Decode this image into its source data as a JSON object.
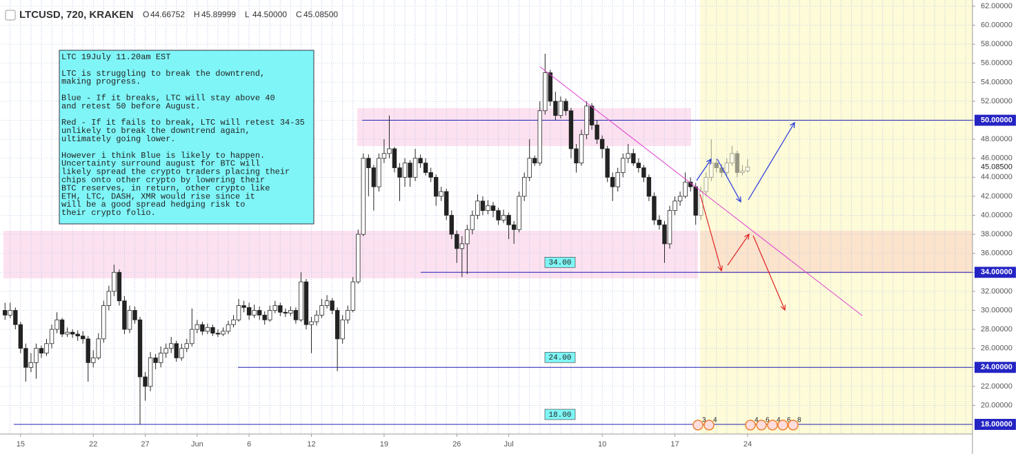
{
  "chart_data": {
    "type": "candlestick",
    "header": {
      "symbol": "LTCUSD, 720, KRAKEN",
      "ohlc": [
        {
          "key": "O",
          "value": "44.66752"
        },
        {
          "key": "H",
          "value": "45.89999"
        },
        {
          "key": "L",
          "value": "44.50000"
        },
        {
          "key": "C",
          "value": "45.08500"
        }
      ]
    },
    "open": [
      30,
      29.5,
      30,
      28.5,
      26,
      24,
      24.5,
      26,
      25.5,
      26.5,
      28,
      29,
      27.5,
      27.7,
      27.5,
      27.3,
      27,
      24.5,
      25,
      27,
      30.5,
      32,
      34,
      31,
      28,
      30,
      29,
      23,
      22,
      25,
      24.5,
      25.5,
      26,
      26.5,
      25,
      26,
      26.5,
      28,
      28.5,
      27.8,
      28.2,
      27.6,
      27.5,
      27.8,
      28.5,
      29,
      30.5,
      30.3,
      29.5,
      30,
      29.5,
      29,
      30,
      30.5,
      29.8,
      29.7,
      30,
      29,
      33,
      28.5,
      28.8,
      29.5,
      30.5,
      31,
      30,
      27,
      29,
      30,
      33,
      38,
      46,
      45,
      43,
      46,
      46.5,
      47,
      45,
      44,
      45.5,
      44,
      46,
      45.5,
      44.5,
      44,
      42,
      42.5,
      40,
      38,
      36.5,
      37,
      38.5,
      40,
      41.5,
      40.5,
      41,
      40.5,
      39.5,
      40,
      39,
      38.5,
      42,
      44,
      46,
      45.5,
      51,
      55,
      52,
      50.5,
      52,
      51,
      47,
      45.5,
      48.5,
      51.5,
      49.5,
      48,
      47,
      44,
      43,
      44.5,
      46,
      46.5,
      45.5,
      45,
      44,
      42,
      39.5,
      39,
      37,
      40.5,
      41.5,
      42,
      43.5,
      43,
      40,
      42.5,
      44,
      45.5,
      45,
      44.5,
      45.5,
      46.5,
      44.5,
      44.66752
    ],
    "high": [
      30.8,
      30.8,
      30.3,
      28.8,
      26.5,
      25.5,
      26.5,
      26.3,
      27,
      28.5,
      29.8,
      29.2,
      28.2,
      28,
      27.9,
      27.8,
      27.3,
      25.8,
      27.6,
      31,
      32.6,
      34.8,
      34.3,
      31.5,
      30.5,
      30.4,
      29.3,
      23.5,
      25.6,
      25.4,
      26.2,
      26.5,
      27.2,
      26.8,
      26.5,
      27,
      30.2,
      29,
      28.8,
      28.6,
      28.5,
      28,
      28.2,
      28.9,
      29.5,
      31.2,
      31,
      30.8,
      30.6,
      30.4,
      29.9,
      30.5,
      31,
      30.8,
      30.2,
      30.4,
      30.3,
      34,
      33.3,
      29.3,
      30,
      31.2,
      31.6,
      31.3,
      30.3,
      29.5,
      30.5,
      33.5,
      38.5,
      46.5,
      46.4,
      45.3,
      46.5,
      48,
      50.5,
      47.2,
      45.5,
      46,
      45.8,
      47,
      46.4,
      46,
      45,
      44.3,
      43,
      42.8,
      40.5,
      38.4,
      37.8,
      39,
      40.5,
      42.2,
      42,
      41.6,
      41.4,
      40.8,
      40.6,
      40.3,
      39.4,
      42.5,
      44.5,
      48,
      46.3,
      52,
      57,
      55.3,
      53,
      52.5,
      52.3,
      51.3,
      47.5,
      49,
      52,
      51.8,
      50,
      48.4,
      47.3,
      44.5,
      45,
      46.5,
      47.5,
      47,
      46,
      45.3,
      44.3,
      42.4,
      40,
      39.4,
      41,
      42,
      42.5,
      44.5,
      44,
      43.4,
      43,
      44.5,
      48,
      46,
      45.4,
      46,
      47.3,
      46.8,
      45.3,
      45.89999
    ],
    "low": [
      29,
      29.2,
      28,
      25.5,
      22.5,
      23.5,
      22.8,
      25,
      25.2,
      26,
      27.6,
      27.2,
      27.2,
      27.1,
      26.8,
      26.5,
      22.5,
      24,
      24.8,
      26.6,
      30,
      31.5,
      30.5,
      27.5,
      27.6,
      28.6,
      18,
      20.5,
      21.5,
      23.8,
      24,
      25,
      25.5,
      24.6,
      24.7,
      25.6,
      26.2,
      27.6,
      27.4,
      27.5,
      27.3,
      27.2,
      27.3,
      27.5,
      28.2,
      28.8,
      29.8,
      29,
      29.2,
      29,
      28.5,
      28.8,
      29.7,
      29.4,
      29.3,
      29.4,
      28.6,
      28.8,
      28,
      25.5,
      28.4,
      29.2,
      30.2,
      29.6,
      23.6,
      26.5,
      28.6,
      29.8,
      32.8,
      37.8,
      42,
      40.5,
      42.5,
      45.5,
      46,
      44.5,
      41.5,
      43,
      43,
      43.6,
      45,
      44.2,
      43.5,
      41,
      41.5,
      39.5,
      37.5,
      35,
      33.5,
      33.8,
      38,
      39.6,
      40,
      40.1,
      39.8,
      39,
      39.2,
      37.5,
      37,
      38.2,
      41.5,
      43.6,
      45.2,
      45.2,
      50.6,
      51.5,
      50,
      50.2,
      50.5,
      46,
      44.5,
      45.2,
      48,
      49,
      47.5,
      46,
      43.5,
      41.5,
      42.5,
      44,
      45.5,
      45.2,
      44.5,
      43.5,
      41.5,
      39,
      38.5,
      35,
      36.5,
      40,
      41,
      41.8,
      42.5,
      39,
      39.5,
      42,
      43.6,
      44.5,
      44,
      44.2,
      45.2,
      44,
      44.2,
      44.5
    ],
    "close": [
      29.5,
      30,
      28.5,
      26,
      24,
      24.5,
      26,
      25.5,
      26.5,
      28,
      29,
      27.5,
      27.7,
      27.5,
      27.3,
      27,
      24.5,
      25,
      27,
      30.5,
      32,
      34,
      31,
      28,
      30,
      29,
      23,
      22,
      25,
      24.5,
      25.5,
      26,
      26.5,
      25,
      26,
      26.5,
      28,
      28.5,
      27.8,
      28.2,
      27.6,
      27.5,
      27.8,
      28.5,
      29,
      30.5,
      30.3,
      29.5,
      30,
      29.5,
      29,
      30,
      30.5,
      29.8,
      29.7,
      30,
      29,
      33,
      28.5,
      28.8,
      29.5,
      30.5,
      31,
      30,
      27,
      29,
      30,
      33,
      38,
      46,
      45,
      43,
      46,
      46.5,
      47,
      45,
      44,
      45.5,
      44,
      46,
      45.5,
      44.5,
      44,
      42,
      42.5,
      40,
      38,
      36.5,
      37,
      38.5,
      40,
      41.5,
      40.5,
      41,
      40.5,
      39.5,
      40,
      39,
      38.5,
      42,
      44,
      46,
      45.5,
      51,
      55,
      52,
      50.5,
      52,
      51,
      47,
      45.5,
      48.5,
      51.5,
      49.5,
      48,
      47,
      44,
      43,
      44.5,
      46,
      46.5,
      45.5,
      45,
      44,
      42,
      39.5,
      39,
      37,
      40.5,
      41.5,
      42,
      43.5,
      43,
      40,
      42.5,
      44,
      45.5,
      45,
      44.5,
      45.5,
      46.5,
      44.5,
      44.66752,
      45.085
    ],
    "xlim": [
      -0.3,
      186.3
    ],
    "xticks": [
      {
        "value": 3,
        "label": "15"
      },
      {
        "value": 17,
        "label": "22"
      },
      {
        "value": 27,
        "label": "27"
      },
      {
        "value": 37,
        "label": "Jun"
      },
      {
        "value": 47,
        "label": "6"
      },
      {
        "value": 59,
        "label": "12"
      },
      {
        "value": 73,
        "label": "19"
      },
      {
        "value": 87,
        "label": "26"
      },
      {
        "value": 97,
        "label": "Jul"
      },
      {
        "value": 115,
        "label": "10"
      },
      {
        "value": 129,
        "label": "17"
      },
      {
        "value": 143,
        "label": "24"
      }
    ],
    "ylim": [
      17.64,
      62
    ],
    "yticks": [
      {
        "value": 20,
        "label": "20.00000"
      },
      {
        "value": 22,
        "label": "22.00000"
      },
      {
        "value": 24,
        "label": "24.00000"
      },
      {
        "value": 26,
        "label": "26.00000"
      },
      {
        "value": 28,
        "label": "28.00000"
      },
      {
        "value": 30,
        "label": "30.00000"
      },
      {
        "value": 32,
        "label": "32.00000"
      },
      {
        "value": 34,
        "label": "34.00000"
      },
      {
        "value": 36,
        "label": "36.00000"
      },
      {
        "value": 38,
        "label": "38.00000"
      },
      {
        "value": 40,
        "label": "40.00000"
      },
      {
        "value": 42,
        "label": "42.00000"
      },
      {
        "value": 44,
        "label": "44.00000"
      },
      {
        "value": 46,
        "label": "46.00000"
      },
      {
        "value": 48,
        "label": "48.00000"
      },
      {
        "value": 50,
        "label": "50.00000"
      },
      {
        "value": 52,
        "label": "52.00000"
      },
      {
        "value": 54,
        "label": "54.00000"
      },
      {
        "value": 56,
        "label": "56.00000"
      },
      {
        "value": 58,
        "label": "58.00000"
      },
      {
        "value": 60,
        "label": "60.00000"
      },
      {
        "value": 62,
        "label": "62.00000"
      }
    ],
    "grid": true,
    "levels": [
      {
        "value": 50,
        "label": "50.00000"
      },
      {
        "value": 34,
        "label": "34.00000",
        "tag": "34.00"
      },
      {
        "value": 24,
        "label": "24.00000",
        "tag": "24.00"
      },
      {
        "value": 18,
        "label": "18.00000",
        "tag": "18.00"
      }
    ],
    "last_price": {
      "value": 45.085,
      "label": "45.08500"
    },
    "annotation": [
      [
        "LTC 19July 11.20am EST"
      ],
      [
        "LTC is struggling to break the downtrend,",
        "making progress."
      ],
      [
        "Blue - If it breaks, LTC will stay above 40",
        "and retest 50 before August."
      ],
      [
        "Red - If it fails to break, LTC will retest 34-35",
        "unlikely to break the downtrend again,",
        "ultimately going lower."
      ],
      [
        "However i think Blue is likely to happen.",
        "Uncertainty surround august for BTC will",
        "likely spread the crypto traders placing their",
        "chips onto other crypto by lowering their",
        "BTC reserves, in return, other crypto like",
        "ETH, LTC, DASH, XMR would rise since it",
        "will be a good spread hedging risk to",
        "their crypto folio."
      ]
    ],
    "events": [
      "3",
      "4",
      "4",
      "6",
      "4",
      "6",
      "8"
    ]
  }
}
